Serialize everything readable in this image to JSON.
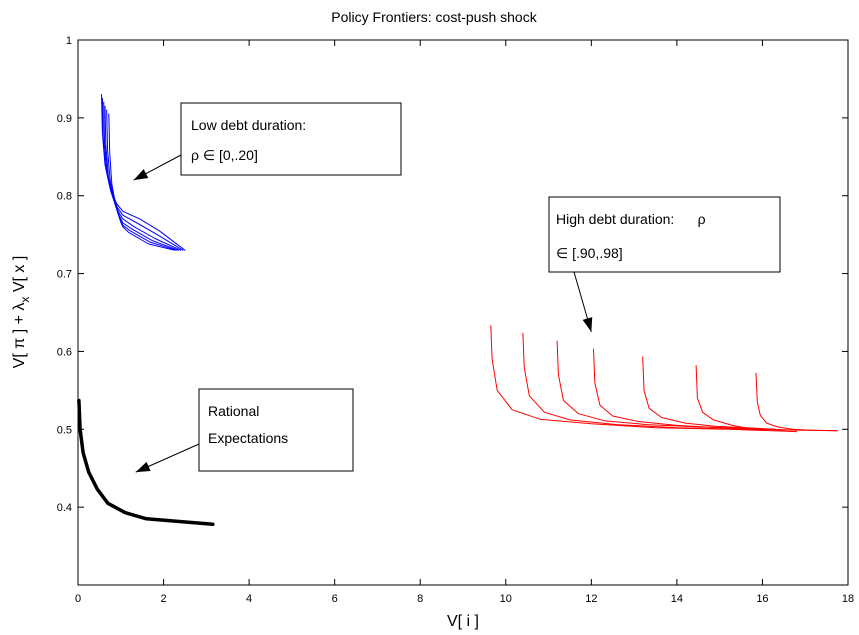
{
  "chart_data": {
    "type": "line",
    "title": "Policy Frontiers: cost-push shock",
    "xlabel": "V[ i ]",
    "ylabel": "V[ π ] + λ",
    "ylabel_sub": "x",
    "ylabel_rest": " V[ x ]",
    "xlim": [
      0,
      18
    ],
    "ylim": [
      0.3,
      1.0
    ],
    "xticks": [
      0,
      2,
      4,
      6,
      8,
      10,
      12,
      14,
      16,
      18
    ],
    "yticks": [
      0.4,
      0.5,
      0.6,
      0.7,
      0.8,
      0.9,
      1
    ],
    "ytick_labels": [
      "0.4",
      "0.5",
      "0.6",
      "0.7",
      "0.8",
      "0.9",
      "1"
    ],
    "grid": false,
    "annotations": [
      {
        "id": "low",
        "lines": [
          "Low debt duration:",
          "ρ ∈ [0,.20]"
        ],
        "arrow_to": [
          1.3,
          0.82
        ]
      },
      {
        "id": "high",
        "lines": [
          "High debt duration:      ρ",
          "∈ [.90,.98]"
        ],
        "arrow_to": [
          12.0,
          0.625
        ]
      },
      {
        "id": "re",
        "lines": [
          "Rational",
          "Expectations"
        ],
        "arrow_to": [
          1.35,
          0.445
        ]
      }
    ],
    "series": [
      {
        "group": "Rational Expectations",
        "color": "#000000",
        "width": 3.5,
        "curves": [
          [
            [
              0.02,
              0.537
            ],
            [
              0.05,
              0.5
            ],
            [
              0.12,
              0.47
            ],
            [
              0.25,
              0.445
            ],
            [
              0.45,
              0.423
            ],
            [
              0.7,
              0.405
            ],
            [
              1.1,
              0.393
            ],
            [
              1.6,
              0.385
            ],
            [
              2.3,
              0.382
            ],
            [
              3.15,
              0.378
            ]
          ]
        ]
      },
      {
        "group": "Low debt duration",
        "color": "#0000ff",
        "width": 1,
        "curves": [
          [
            [
              0.55,
              0.93
            ],
            [
              0.57,
              0.88
            ],
            [
              0.63,
              0.84
            ],
            [
              0.75,
              0.81
            ],
            [
              0.9,
              0.79
            ],
            [
              1.05,
              0.78
            ],
            [
              1.45,
              0.77
            ],
            [
              1.9,
              0.755
            ],
            [
              2.5,
              0.73
            ]
          ],
          [
            [
              0.57,
              0.925
            ],
            [
              0.59,
              0.875
            ],
            [
              0.65,
              0.835
            ],
            [
              0.77,
              0.805
            ],
            [
              0.92,
              0.785
            ],
            [
              1.05,
              0.775
            ],
            [
              1.38,
              0.765
            ],
            [
              1.85,
              0.75
            ],
            [
              2.45,
              0.73
            ]
          ],
          [
            [
              0.6,
              0.92
            ],
            [
              0.62,
              0.87
            ],
            [
              0.68,
              0.83
            ],
            [
              0.8,
              0.8
            ],
            [
              0.94,
              0.78
            ],
            [
              1.05,
              0.77
            ],
            [
              1.32,
              0.76
            ],
            [
              1.8,
              0.745
            ],
            [
              2.4,
              0.73
            ]
          ],
          [
            [
              0.63,
              0.915
            ],
            [
              0.65,
              0.865
            ],
            [
              0.71,
              0.825
            ],
            [
              0.83,
              0.795
            ],
            [
              0.96,
              0.775
            ],
            [
              1.05,
              0.765
            ],
            [
              1.27,
              0.757
            ],
            [
              1.75,
              0.742
            ],
            [
              2.35,
              0.73
            ]
          ],
          [
            [
              0.67,
              0.91
            ],
            [
              0.69,
              0.86
            ],
            [
              0.75,
              0.82
            ],
            [
              0.86,
              0.79
            ],
            [
              0.98,
              0.77
            ],
            [
              1.05,
              0.762
            ],
            [
              1.22,
              0.755
            ],
            [
              1.7,
              0.74
            ],
            [
              2.3,
              0.73
            ]
          ],
          [
            [
              0.72,
              0.905
            ],
            [
              0.74,
              0.855
            ],
            [
              0.79,
              0.815
            ],
            [
              0.89,
              0.785
            ],
            [
              1.0,
              0.766
            ],
            [
              1.05,
              0.76
            ],
            [
              1.18,
              0.753
            ],
            [
              1.65,
              0.738
            ],
            [
              2.25,
              0.73
            ]
          ]
        ]
      },
      {
        "group": "High debt duration",
        "color": "#ff0000",
        "width": 1,
        "curves": [
          [
            [
              9.65,
              0.633
            ],
            [
              9.68,
              0.59
            ],
            [
              9.8,
              0.55
            ],
            [
              10.15,
              0.525
            ],
            [
              10.8,
              0.513
            ],
            [
              12.0,
              0.507
            ],
            [
              13.5,
              0.502
            ],
            [
              15.2,
              0.5
            ],
            [
              16.8,
              0.497
            ]
          ],
          [
            [
              10.4,
              0.623
            ],
            [
              10.43,
              0.58
            ],
            [
              10.55,
              0.543
            ],
            [
              10.9,
              0.522
            ],
            [
              11.5,
              0.512
            ],
            [
              12.6,
              0.506
            ],
            [
              14.0,
              0.502
            ],
            [
              15.6,
              0.5
            ],
            [
              17.75,
              0.498
            ]
          ],
          [
            [
              11.2,
              0.613
            ],
            [
              11.23,
              0.57
            ],
            [
              11.35,
              0.537
            ],
            [
              11.7,
              0.52
            ],
            [
              12.3,
              0.511
            ],
            [
              13.3,
              0.506
            ],
            [
              14.5,
              0.503
            ],
            [
              16.3,
              0.5
            ]
          ],
          [
            [
              12.05,
              0.603
            ],
            [
              12.08,
              0.56
            ],
            [
              12.2,
              0.531
            ],
            [
              12.5,
              0.517
            ],
            [
              13.1,
              0.51
            ],
            [
              14.0,
              0.505
            ],
            [
              15.0,
              0.502
            ],
            [
              16.0,
              0.5
            ]
          ],
          [
            [
              13.2,
              0.593
            ],
            [
              13.23,
              0.55
            ],
            [
              13.35,
              0.527
            ],
            [
              13.65,
              0.515
            ],
            [
              14.2,
              0.508
            ],
            [
              14.9,
              0.504
            ],
            [
              15.6,
              0.502
            ],
            [
              16.3,
              0.5
            ]
          ],
          [
            [
              14.45,
              0.582
            ],
            [
              14.48,
              0.54
            ],
            [
              14.6,
              0.522
            ],
            [
              14.85,
              0.512
            ],
            [
              15.3,
              0.505
            ],
            [
              15.6,
              0.502
            ],
            [
              16.1,
              0.5
            ],
            [
              16.8,
              0.499
            ]
          ],
          [
            [
              15.85,
              0.572
            ],
            [
              15.88,
              0.535
            ],
            [
              15.95,
              0.518
            ],
            [
              16.1,
              0.508
            ],
            [
              16.35,
              0.503
            ],
            [
              16.7,
              0.5
            ],
            [
              17.1,
              0.499
            ],
            [
              17.75,
              0.498
            ]
          ]
        ]
      }
    ]
  }
}
